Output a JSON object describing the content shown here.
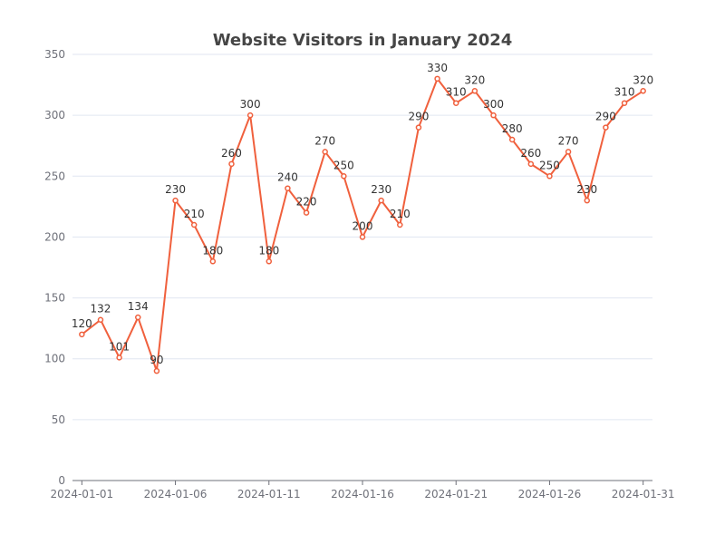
{
  "chart_data": {
    "type": "line",
    "title": "Website Visitors in January 2024",
    "xlabel": "",
    "ylabel": "",
    "x": [
      "2024-01-01",
      "2024-01-02",
      "2024-01-03",
      "2024-01-04",
      "2024-01-05",
      "2024-01-06",
      "2024-01-07",
      "2024-01-08",
      "2024-01-09",
      "2024-01-10",
      "2024-01-11",
      "2024-01-12",
      "2024-01-13",
      "2024-01-14",
      "2024-01-15",
      "2024-01-16",
      "2024-01-17",
      "2024-01-18",
      "2024-01-19",
      "2024-01-20",
      "2024-01-21",
      "2024-01-22",
      "2024-01-23",
      "2024-01-24",
      "2024-01-25",
      "2024-01-26",
      "2024-01-27",
      "2024-01-28",
      "2024-01-29",
      "2024-01-30",
      "2024-01-31"
    ],
    "x_tick_labels": [
      "2024-01-01",
      "2024-01-06",
      "2024-01-11",
      "2024-01-16",
      "2024-01-21",
      "2024-01-26",
      "2024-01-31"
    ],
    "series": [
      {
        "values": [
          120,
          132,
          101,
          134,
          90,
          230,
          210,
          180,
          260,
          300,
          180,
          240,
          220,
          270,
          250,
          200,
          230,
          210,
          290,
          330,
          310,
          320,
          300,
          280,
          260,
          250,
          270,
          230,
          290,
          310,
          320
        ]
      }
    ],
    "ylim": [
      0,
      350
    ],
    "y_ticks": [
      0,
      50,
      100,
      150,
      200,
      250,
      300,
      350
    ],
    "grid": true,
    "legend": "none",
    "colors": {
      "line": "#f0603d",
      "grid": "#e0e6f1",
      "axis": "#6e7079",
      "title": "#464646"
    }
  }
}
